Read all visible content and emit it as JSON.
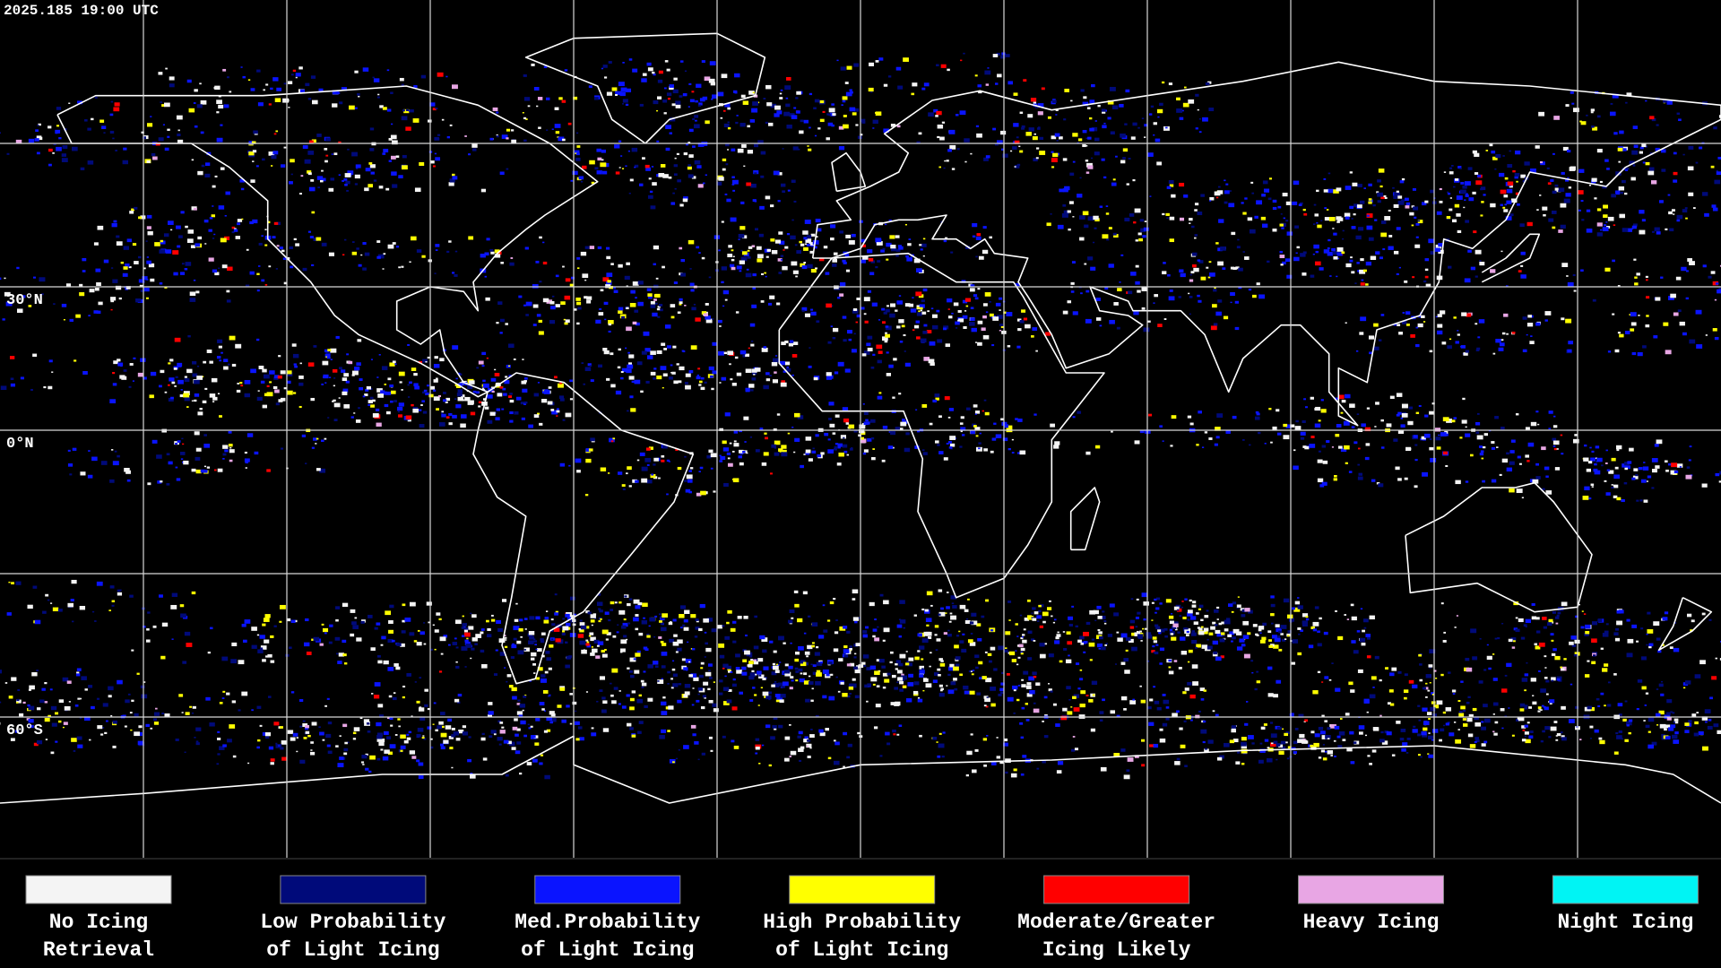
{
  "header": {
    "timestamp": "2025.185 19:00 UTC"
  },
  "map": {
    "latitude_labels": [
      "30°N",
      "0°N",
      "60°S"
    ]
  },
  "legend": [
    {
      "color": "#f4f4f4",
      "label": [
        "No Icing",
        "Retrieval"
      ]
    },
    {
      "color": "#000a7a",
      "label": [
        "Low Probability",
        "of Light Icing"
      ]
    },
    {
      "color": "#0a14ff",
      "label": [
        "Med.Probability",
        "of Light Icing"
      ]
    },
    {
      "color": "#ffff00",
      "label": [
        "High Probability",
        "of Light Icing"
      ]
    },
    {
      "color": "#ff0000",
      "label": [
        "Moderate/Greater",
        "Icing Likely"
      ]
    },
    {
      "color": "#e8a6e4",
      "label": [
        "Heavy Icing"
      ]
    },
    {
      "color": "#00f4f4",
      "label": [
        "Night Icing"
      ]
    }
  ]
}
